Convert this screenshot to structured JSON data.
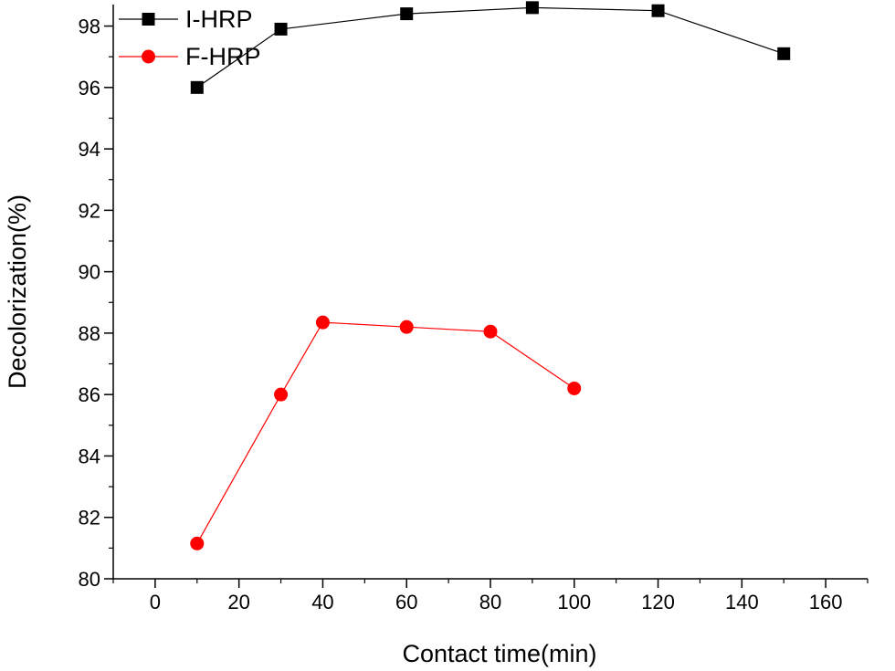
{
  "chart_data": {
    "type": "line",
    "title": "",
    "xlabel": "Contact time(min)",
    "ylabel": "Decolorization(%)",
    "xlim": [
      -10,
      170
    ],
    "ylim": [
      80,
      98.7
    ],
    "x_ticks": [
      0,
      20,
      40,
      60,
      80,
      100,
      120,
      140,
      160
    ],
    "y_ticks": [
      80,
      82,
      84,
      86,
      88,
      90,
      92,
      94,
      96,
      98
    ],
    "grid": false,
    "legend_position": "top-left",
    "series": [
      {
        "name": "I-HRP",
        "marker": "square",
        "color": "#000000",
        "x": [
          10,
          30,
          60,
          90,
          120,
          150
        ],
        "y": [
          96.0,
          97.9,
          98.4,
          98.6,
          98.5,
          97.1
        ]
      },
      {
        "name": "F-HRP",
        "marker": "circle",
        "color": "#ff0000",
        "x": [
          10,
          30,
          40,
          60,
          80,
          100
        ],
        "y": [
          81.15,
          86.0,
          88.35,
          88.2,
          88.05,
          86.2
        ]
      }
    ]
  }
}
